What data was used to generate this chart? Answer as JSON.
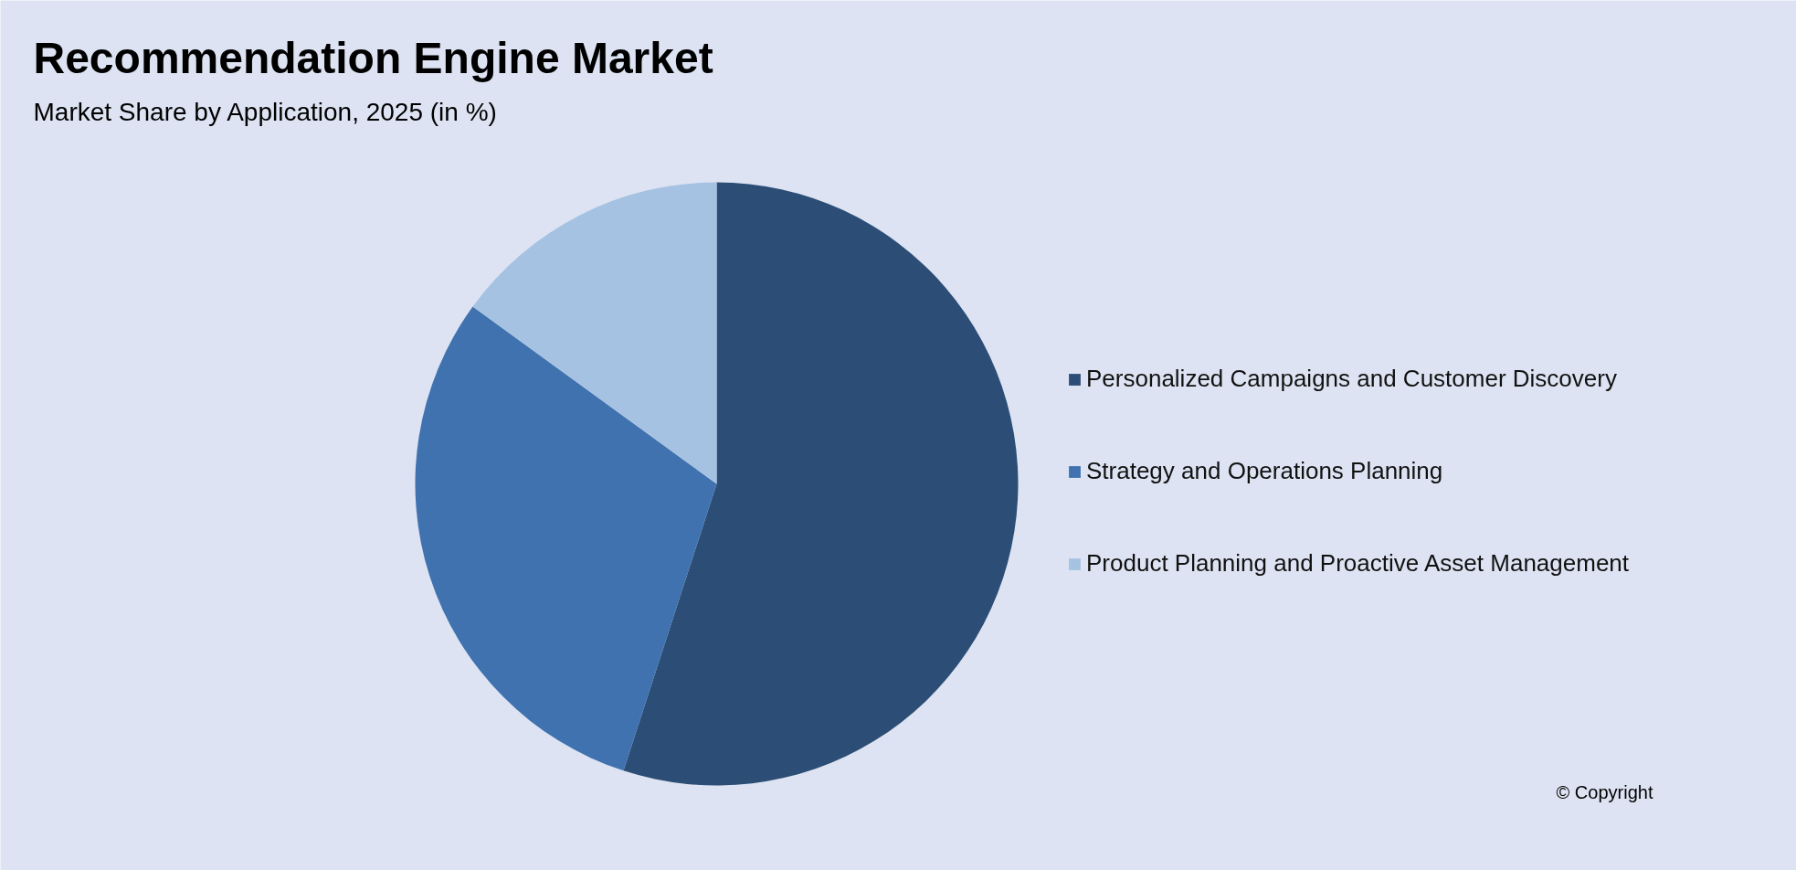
{
  "chart_data": {
    "type": "pie",
    "title": "Recommendation Engine Market",
    "subtitle": "Market Share by Application, 2025 (in %)",
    "categories": [
      "Personalized Campaigns and Customer Discovery",
      "Strategy and Operations Planning",
      "Product Planning and Proactive Asset Management"
    ],
    "values": [
      55,
      30,
      15
    ],
    "colors": [
      "#2c4d75",
      "#3f72af",
      "#a6c2e2"
    ],
    "legend": "right",
    "annotations": [
      "© Copyright"
    ]
  }
}
